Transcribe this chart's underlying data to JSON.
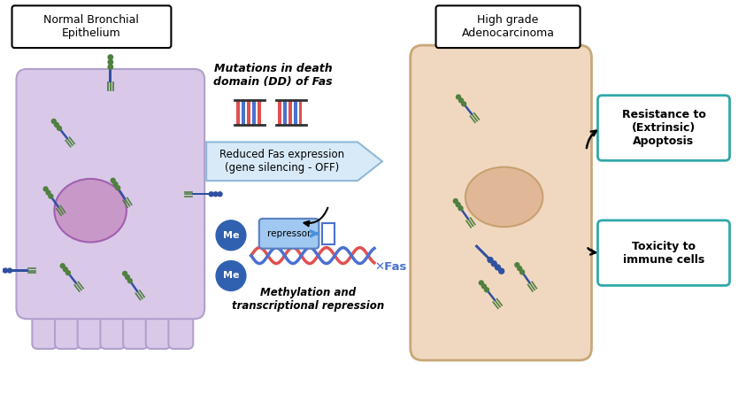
{
  "title_left": "Normal Bronchial\nEpithelium",
  "title_right": "High grade\nAdenocarcinoma",
  "label_mutations": "Mutations in death\ndomain (DD) of Fas",
  "label_reduced": "Reduced Fas expression\n(gene silencing - OFF)",
  "label_methylation": "Methylation and\ntranscriptional repression",
  "label_repressor": "repressor",
  "label_me1": "Me",
  "label_me2": "Me",
  "label_fas": "Fas",
  "label_resistance": "Resistance to\n(Extrinsic)\nApoptosis",
  "label_toxicity": "Toxicity to\nimmune cells",
  "cell_left_color": "#d9c8e8",
  "cell_left_border": "#b0a0cc",
  "nucleus_left_color": "#c898c8",
  "cell_right_color": "#f0d8c0",
  "cell_right_border": "#c8a878",
  "nucleus_right_color": "#e0b898",
  "arrow_blue_color": "#4a90d9",
  "dna_red": "#e05050",
  "dna_blue": "#4a70d0",
  "protein_blue": "#3050a0",
  "protein_green": "#508040",
  "me_circle_color": "#3060b0",
  "repressor_color": "#a0c8f0",
  "background_color": "#ffffff",
  "teal_box_edge": "#30a8a8"
}
